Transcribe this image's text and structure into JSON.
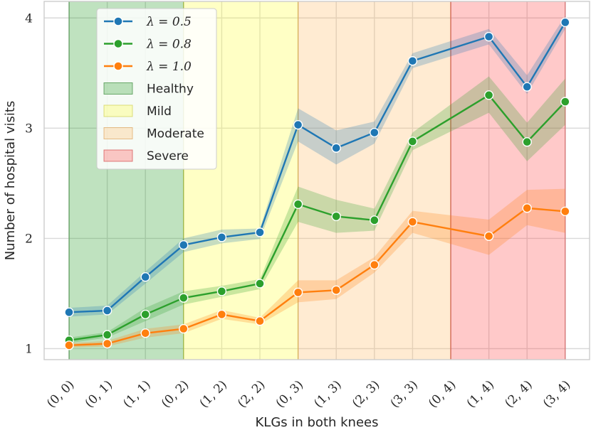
{
  "chart_data": {
    "type": "line",
    "title": "",
    "xlabel": "KLGs in both knees",
    "ylabel": "Number of hospital visits",
    "ylim": [
      0.9,
      4.15
    ],
    "yticks": [
      1,
      2,
      3,
      4
    ],
    "grid": true,
    "legend_position": "upper-left",
    "categories": [
      "(0, 0)",
      "(0, 1)",
      "(1, 1)",
      "(0, 2)",
      "(1, 2)",
      "(2, 2)",
      "(0, 3)",
      "(1, 3)",
      "(2, 3)",
      "(3, 3)",
      "(0, 4)",
      "(1, 4)",
      "(2, 4)",
      "(3, 4)"
    ],
    "series": [
      {
        "name": "λ = 0.5",
        "color": "#1f77b4",
        "values": [
          1.33,
          1.345,
          1.65,
          1.94,
          2.01,
          2.055,
          3.03,
          2.82,
          2.96,
          3.61,
          null,
          3.83,
          3.375,
          3.96
        ],
        "lower": [
          1.29,
          1.31,
          1.59,
          1.875,
          1.955,
          1.995,
          2.88,
          2.67,
          2.86,
          3.545,
          null,
          3.76,
          3.31,
          3.9
        ],
        "upper": [
          1.37,
          1.39,
          1.7,
          2.0,
          2.08,
          2.09,
          3.18,
          2.98,
          3.06,
          3.68,
          null,
          3.9,
          3.48,
          4.02
        ]
      },
      {
        "name": "λ = 0.8",
        "color": "#2ca02c",
        "values": [
          1.075,
          1.125,
          1.31,
          1.46,
          1.52,
          1.59,
          2.31,
          2.2,
          2.165,
          2.88,
          null,
          3.3,
          2.875,
          3.24
        ],
        "lower": [
          1.05,
          1.1,
          1.25,
          1.4,
          1.47,
          1.54,
          2.15,
          2.05,
          2.07,
          2.8,
          null,
          3.14,
          2.7,
          3.03
        ],
        "upper": [
          1.1,
          1.15,
          1.37,
          1.52,
          1.57,
          1.63,
          2.47,
          2.35,
          2.27,
          2.96,
          null,
          3.47,
          3.05,
          3.45
        ]
      },
      {
        "name": "λ = 1.0",
        "color": "#ff7f0e",
        "values": [
          1.03,
          1.045,
          1.14,
          1.18,
          1.31,
          1.25,
          1.51,
          1.53,
          1.76,
          2.15,
          null,
          2.02,
          2.275,
          2.245
        ],
        "lower": [
          1.01,
          1.02,
          1.1,
          1.14,
          1.27,
          1.22,
          1.42,
          1.45,
          1.69,
          2.05,
          null,
          1.85,
          2.12,
          2.05
        ],
        "upper": [
          1.05,
          1.07,
          1.18,
          1.22,
          1.35,
          1.28,
          1.62,
          1.62,
          1.83,
          2.25,
          null,
          2.17,
          2.44,
          2.45
        ]
      }
    ],
    "regions": [
      {
        "name": "Healthy",
        "from": 0,
        "to": 3,
        "fill": "#2ca02c",
        "edge": "#1f7a1f"
      },
      {
        "name": "Mild",
        "from": 3,
        "to": 6,
        "fill": "#ffff3f",
        "edge": "#c8c83a"
      },
      {
        "name": "Moderate",
        "from": 6,
        "to": 10,
        "fill": "#ffbe6a",
        "edge": "#d9984a"
      },
      {
        "name": "Severe",
        "from": 10,
        "to": 13,
        "fill": "#ff4d4d",
        "edge": "#cc3333"
      }
    ]
  }
}
